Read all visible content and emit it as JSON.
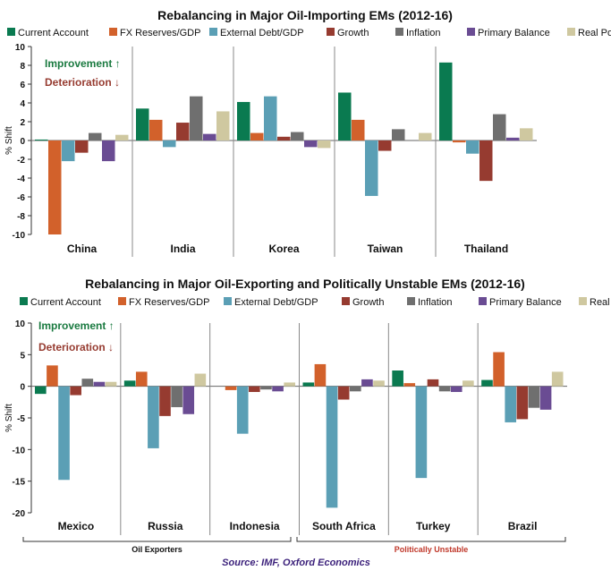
{
  "colors": {
    "series": [
      "#0a7a50",
      "#d2612b",
      "#5b9fb5",
      "#963b30",
      "#6f6f6f",
      "#6a4c93",
      "#cfc8a0"
    ],
    "improvement": "#1a7a40",
    "deterioration": "#963b30",
    "politically_unstable": "#c0392b",
    "source": "#3a1f7a"
  },
  "chart_data": [
    {
      "type": "bar",
      "title": "Rebalancing in Major Oil-Importing EMs (2012-16)",
      "ylabel": "% Shift",
      "ylim": [
        -10,
        10
      ],
      "yticks": [
        10,
        8,
        6,
        4,
        2,
        0,
        -2,
        -4,
        -6,
        -8,
        -10
      ],
      "grid": false,
      "legend_position": "top",
      "categories": [
        "China",
        "India",
        "Korea",
        "Taiwan",
        "Thailand"
      ],
      "annotations": {
        "improvement": "Improvement ↑",
        "deterioration": "Deterioration ↓"
      },
      "series": [
        {
          "name": "Current Account",
          "values": [
            0.1,
            3.4,
            4.1,
            5.1,
            8.3
          ]
        },
        {
          "name": "FX Reserves/GDP",
          "values": [
            -10.0,
            2.2,
            0.8,
            2.2,
            -0.2
          ]
        },
        {
          "name": "External Debt/GDP",
          "values": [
            -2.2,
            -0.7,
            4.7,
            -5.9,
            -1.4
          ]
        },
        {
          "name": "Growth",
          "values": [
            -1.3,
            1.9,
            0.4,
            -1.1,
            -4.3
          ]
        },
        {
          "name": "Inflation",
          "values": [
            0.8,
            4.7,
            0.9,
            1.2,
            2.8
          ]
        },
        {
          "name": "Primary Balance",
          "values": [
            -2.2,
            0.7,
            -0.7,
            0.0,
            0.3
          ]
        },
        {
          "name": "Real Policy Rates",
          "values": [
            0.6,
            3.1,
            -0.8,
            0.8,
            1.3
          ]
        }
      ]
    },
    {
      "type": "bar",
      "title": "Rebalancing in Major Oil-Exporting and Politically Unstable EMs (2012-16)",
      "ylabel": "% Shift",
      "ylim": [
        -20,
        10
      ],
      "yticks": [
        10,
        5,
        0,
        -5,
        -10,
        -15,
        -20
      ],
      "grid": false,
      "legend_position": "top",
      "categories": [
        "Mexico",
        "Russia",
        "Indonesia",
        "South Africa",
        "Turkey",
        "Brazil"
      ],
      "annotations": {
        "improvement": "Improvement ↑",
        "deterioration": "Deterioration ↓"
      },
      "groups": {
        "oil_exporters": "Oil Exporters",
        "politically_unstable": "Politically Unstable"
      },
      "series": [
        {
          "name": "Current Account",
          "values": [
            -1.2,
            0.9,
            0.0,
            0.6,
            2.5,
            1.0
          ]
        },
        {
          "name": "FX Reserves/GDP",
          "values": [
            3.3,
            2.3,
            -0.6,
            3.5,
            0.5,
            5.4
          ]
        },
        {
          "name": "External Debt/GDP",
          "values": [
            -14.8,
            -9.8,
            -7.5,
            -19.2,
            -14.5,
            -5.7
          ]
        },
        {
          "name": "Growth",
          "values": [
            -1.4,
            -4.7,
            -0.9,
            -2.1,
            1.1,
            -5.2
          ]
        },
        {
          "name": "Inflation",
          "values": [
            1.2,
            -3.3,
            -0.5,
            -0.8,
            -0.8,
            -3.4
          ]
        },
        {
          "name": "Primary Balance",
          "values": [
            0.7,
            -4.4,
            -0.8,
            1.1,
            -0.9,
            -3.7
          ]
        },
        {
          "name": "Real Policy Rates",
          "values": [
            0.7,
            2.0,
            0.6,
            0.9,
            0.9,
            2.3
          ]
        }
      ]
    }
  ],
  "source": "Source: IMF, Oxford Economics"
}
